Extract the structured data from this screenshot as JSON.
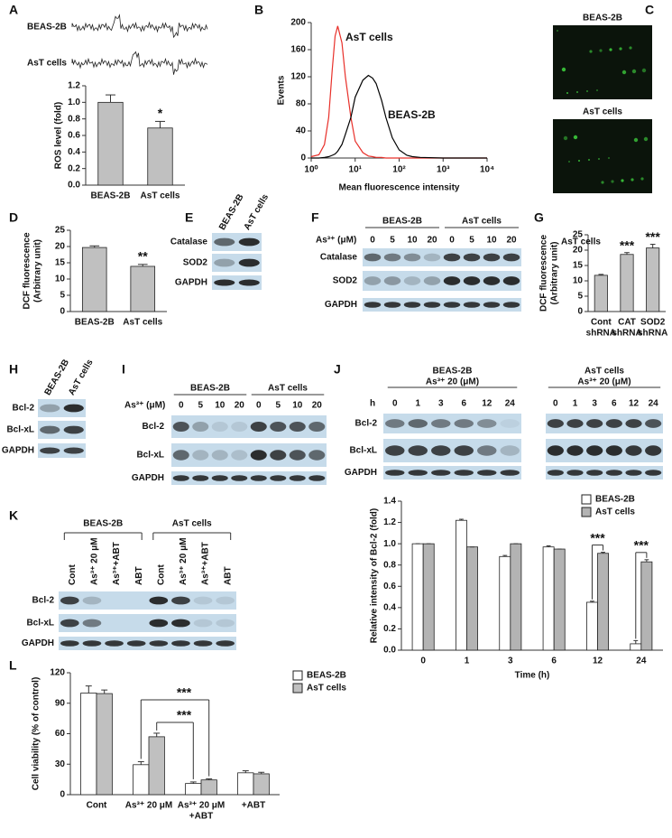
{
  "panel_labels": [
    "A",
    "B",
    "C",
    "D",
    "E",
    "F",
    "G",
    "H",
    "I",
    "J",
    "K",
    "L"
  ],
  "traces": {
    "labels": [
      "BEAS-2B",
      "AsT cells"
    ]
  },
  "images": {
    "labels": [
      "BEAS-2B",
      "AsT cells"
    ]
  },
  "blots": {
    "E": {
      "columns": [
        "BEAS-2B",
        "AsT cells"
      ],
      "rows": [
        "Catalase",
        "SOD2",
        "GAPDH"
      ]
    },
    "F": {
      "groups": [
        "BEAS-2B",
        "AsT cells"
      ],
      "dose_label": "As³⁺ (μM)",
      "lanes": [
        0,
        5,
        10,
        20,
        0,
        5,
        10,
        20
      ],
      "rows": [
        "Catalase",
        "SOD2",
        "GAPDH"
      ]
    },
    "H": {
      "columns": [
        "BEAS-2B",
        "AsT cells"
      ],
      "rows": [
        "Bcl-2",
        "Bcl-xL",
        "GAPDH"
      ]
    },
    "I": {
      "groups": [
        "BEAS-2B",
        "AsT cells"
      ],
      "dose_label": "As³⁺ (μM)",
      "lanes": [
        0,
        5,
        10,
        20,
        0,
        5,
        10,
        20
      ],
      "rows": [
        "Bcl-2",
        "Bcl-xL",
        "GAPDH"
      ]
    },
    "J": {
      "groups": [
        [
          "BEAS-2B",
          "As³⁺ 20 (μM)"
        ],
        [
          "AsT cells",
          "As³⁺ 20 (μM)"
        ]
      ],
      "dose_label": "h",
      "lanes": [
        0,
        1,
        3,
        6,
        12,
        24,
        0,
        1,
        3,
        6,
        12,
        24
      ],
      "rows": [
        "Bcl-2",
        "Bcl-xL",
        "GAPDH"
      ]
    },
    "K": {
      "groups": [
        "BEAS-2B",
        "AsT cells"
      ],
      "lanes": [
        "Cont",
        "As³⁺ 20 μM",
        "As³⁺+ABT",
        "ABT",
        "Cont",
        "As³⁺ 20 μM",
        "As³⁺+ABT",
        "ABT"
      ],
      "rows": [
        "Bcl-2",
        "Bcl-xL",
        "GAPDH"
      ]
    }
  },
  "chart_data": [
    {
      "type": "bar",
      "y_label": "ROS level (fold)",
      "categories": [
        [
          "BEAS-2B"
        ],
        [
          "AsT cells"
        ]
      ],
      "values": [
        1.0,
        0.69
      ],
      "errors": [
        0.09,
        0.08
      ],
      "color": "#c0c0c0",
      "ylim": [
        0,
        1.2
      ],
      "yticks": [
        {
          "value": 0,
          "label": "0.0"
        },
        0.2,
        0.4,
        0.6,
        0.8,
        {
          "value": 1,
          "label": "1.0"
        },
        1.2
      ],
      "annotations": [
        "*"
      ]
    },
    {
      "type": "line",
      "x_label": "Mean fluorescence intensity",
      "y_label": "Events",
      "x_scale": "log",
      "x": [
        1,
        1.5,
        2,
        2.5,
        3,
        3.5,
        4,
        5,
        6,
        8,
        10,
        15,
        20,
        25,
        30,
        40,
        50,
        70,
        100,
        150,
        200,
        300,
        1000,
        10000
      ],
      "series": [
        {
          "name": "AsT cells",
          "color": "#e8302a",
          "values": [
            2,
            5,
            20,
            60,
            130,
            180,
            195,
            170,
            120,
            60,
            25,
            8,
            3,
            2,
            1,
            1,
            0,
            0,
            0,
            0,
            0,
            0,
            0,
            0
          ]
        },
        {
          "name": "BEAS-2B",
          "color": "#000000",
          "values": [
            0,
            0,
            1,
            2,
            4,
            6,
            10,
            20,
            35,
            60,
            90,
            115,
            122,
            118,
            110,
            85,
            60,
            30,
            12,
            4,
            2,
            1,
            0,
            0
          ]
        }
      ],
      "xlim": [
        1,
        10000
      ],
      "xticks": [
        {
          "value": 1,
          "label": "10⁰"
        },
        {
          "value": 10,
          "label": "10¹"
        },
        {
          "value": 100,
          "label": "10²"
        },
        {
          "value": 1000,
          "label": "10³"
        },
        {
          "value": 10000,
          "label": "10⁴"
        }
      ],
      "ylim": [
        0,
        200
      ],
      "yticks": [
        0,
        40,
        80,
        120,
        160,
        200
      ]
    },
    {
      "type": "bar",
      "y_label": [
        "DCF fluorescence",
        "(Arbitrary unit)"
      ],
      "categories": [
        [
          "BEAS-2B"
        ],
        [
          "AsT cells"
        ]
      ],
      "values": [
        19.7,
        13.9
      ],
      "errors": [
        0.5,
        0.6
      ],
      "color": "#c0c0c0",
      "ylim": [
        0,
        25
      ],
      "yticks": [
        0,
        5,
        10,
        15,
        20,
        25
      ],
      "annotations": [
        "**"
      ]
    },
    {
      "type": "bar",
      "title": "AsT cells",
      "y_label": [
        "DCF fluorescence",
        "(Arbitrary unit)"
      ],
      "categories": [
        [
          "Cont",
          "shRNA"
        ],
        [
          "CAT",
          "shRNA"
        ],
        [
          "SOD2",
          "shRNA"
        ]
      ],
      "values": [
        11.8,
        18.6,
        20.7
      ],
      "errors": [
        0.3,
        0.6,
        1.2
      ],
      "color": "#c0c0c0",
      "ylim": [
        0,
        25
      ],
      "yticks": [
        0,
        5,
        10,
        15,
        20,
        25
      ],
      "annotations": [
        "***",
        "***"
      ]
    },
    {
      "type": "bar",
      "x_label": "Time (h)",
      "y_label": "Relative intensity of Bcl-2 (fold)",
      "categories": [
        [
          "0"
        ],
        [
          "1"
        ],
        [
          "3"
        ],
        [
          "6"
        ],
        [
          "12"
        ],
        [
          "24"
        ]
      ],
      "series": [
        {
          "name": "BEAS-2B",
          "color": "#ffffff",
          "values": [
            1.0,
            1.22,
            0.88,
            0.97,
            0.45,
            0.06
          ],
          "errors": [
            0,
            0.01,
            0.01,
            0.01,
            0.01,
            0.03
          ]
        },
        {
          "name": "AsT cells",
          "color": "#b3b3b3",
          "values": [
            1.0,
            0.97,
            1.0,
            0.95,
            0.91,
            0.83
          ],
          "errors": [
            0,
            0,
            0,
            0,
            0.01,
            0.02
          ]
        }
      ],
      "ylim": [
        0,
        1.4
      ],
      "yticks": [
        {
          "value": 0,
          "label": "0.0"
        },
        0.2,
        0.4,
        0.6,
        0.8,
        {
          "value": 1,
          "label": "1.0"
        },
        1.2,
        1.4
      ],
      "annotations": [
        "***",
        "***"
      ]
    },
    {
      "type": "bar",
      "y_label": "Cell viability (% of control)",
      "categories": [
        [
          "Cont"
        ],
        [
          "As³⁺ 20 μM"
        ],
        [
          "As³⁺ 20 μM",
          "+ABT"
        ],
        [
          "+ABT"
        ]
      ],
      "series": [
        {
          "name": "BEAS-2B",
          "color": "#ffffff",
          "values": [
            100,
            29.5,
            11,
            21.5
          ],
          "errors": [
            7,
            3,
            1.5,
            2
          ]
        },
        {
          "name": "AsT cells",
          "color": "#c0c0c0",
          "values": [
            99.5,
            57,
            14.5,
            20.5
          ],
          "errors": [
            3.5,
            3.5,
            1,
            1.5
          ]
        }
      ],
      "ylim": [
        0,
        120
      ],
      "yticks": [
        0,
        30,
        60,
        90,
        120
      ],
      "annotations": [
        "***",
        "***"
      ]
    }
  ]
}
